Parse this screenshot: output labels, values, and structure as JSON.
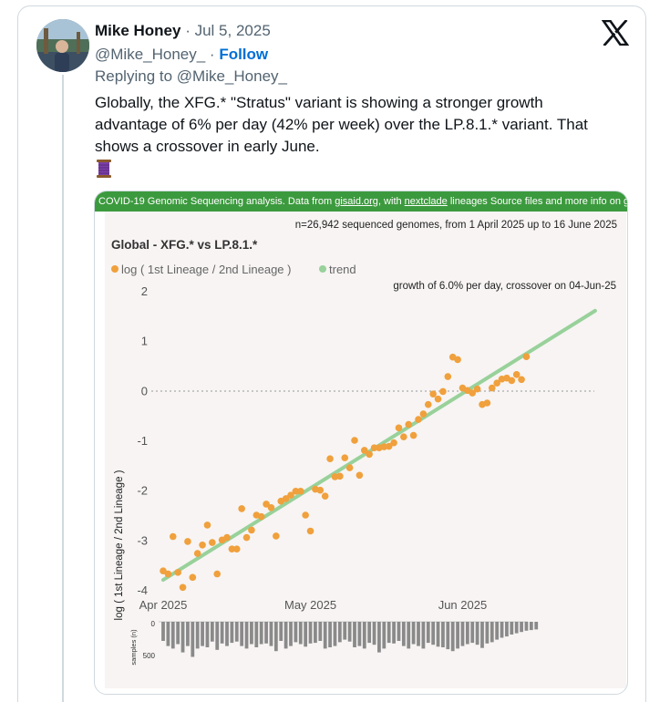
{
  "tweet": {
    "author_name": "Mike Honey",
    "separator": " · ",
    "date": "Jul 5, 2025",
    "handle": "@Mike_Honey_",
    "follow_label": "Follow",
    "reply_prefix": "Replying to ",
    "reply_handle": "@Mike_Honey_",
    "text": "Globally, the XFG.* \"Stratus\" variant is showing a stronger growth advantage of 6% per day (42% per week) over the LP.8.1.* variant. That shows a crossover in early June.",
    "emoji_name": "spool-of-thread-emoji"
  },
  "icons": {
    "x_logo": "x-logo-icon"
  },
  "banner": {
    "prefix": "COVID-19 Genomic Sequencing analysis. Data from ",
    "link1": "gisaid.org",
    "middle": ", with ",
    "link2": "nextclade",
    "suffix": " lineages Source files and more info on ",
    "link3": "github"
  },
  "colors": {
    "banner_green": "#3c9a3e",
    "point_orange": "#f0a03c",
    "trend_green": "#98d19a",
    "bar_gray": "#8a8a8a",
    "follow_blue": "#006fd6"
  },
  "chart_data": {
    "type": "scatter",
    "title": "Global - XFG.* vs LP.8.1.*",
    "subtitle": "n=26,942 sequenced genomes, from 1 April 2025 up to 16 June 2025",
    "annotation": "growth of 6.0% per day, crossover on 04-Jun-25",
    "legend": [
      {
        "name": "log ( 1st Lineage / 2nd Lineage )",
        "color": "#f0a03c"
      },
      {
        "name": "trend",
        "color": "#98d19a"
      }
    ],
    "legend_placement": "top-left",
    "ylabel": "log ( 1st Lineage / 2nd Lineage )",
    "xlabel": "",
    "ylim": [
      -4,
      2
    ],
    "yticks": [
      "2",
      "1",
      "0",
      "-1",
      "-2",
      "-3",
      "-4"
    ],
    "xticks": [
      "Apr 2025",
      "May 2025",
      "Jun 2025"
    ],
    "x_start": "2025-04-01",
    "x_end": "2025-07-01",
    "series": [
      {
        "name": "log ( 1st Lineage / 2nd Lineage )",
        "x": [
          "2025-04-01",
          "2025-04-02",
          "2025-04-03",
          "2025-04-04",
          "2025-04-05",
          "2025-04-06",
          "2025-04-07",
          "2025-04-08",
          "2025-04-09",
          "2025-04-10",
          "2025-04-11",
          "2025-04-12",
          "2025-04-13",
          "2025-04-14",
          "2025-04-15",
          "2025-04-16",
          "2025-04-17",
          "2025-04-18",
          "2025-04-19",
          "2025-04-20",
          "2025-04-21",
          "2025-04-22",
          "2025-04-23",
          "2025-04-24",
          "2025-04-25",
          "2025-04-26",
          "2025-04-27",
          "2025-04-28",
          "2025-04-29",
          "2025-04-30",
          "2025-05-01",
          "2025-05-02",
          "2025-05-03",
          "2025-05-04",
          "2025-05-05",
          "2025-05-06",
          "2025-05-07",
          "2025-05-08",
          "2025-05-09",
          "2025-05-10",
          "2025-05-11",
          "2025-05-12",
          "2025-05-13",
          "2025-05-14",
          "2025-05-15",
          "2025-05-16",
          "2025-05-17",
          "2025-05-18",
          "2025-05-19",
          "2025-05-20",
          "2025-05-21",
          "2025-05-22",
          "2025-05-23",
          "2025-05-24",
          "2025-05-25",
          "2025-05-26",
          "2025-05-27",
          "2025-05-28",
          "2025-05-29",
          "2025-05-30",
          "2025-05-31",
          "2025-06-01",
          "2025-06-02",
          "2025-06-03",
          "2025-06-04",
          "2025-06-05",
          "2025-06-06",
          "2025-06-07",
          "2025-06-08",
          "2025-06-09",
          "2025-06-10",
          "2025-06-11",
          "2025-06-12",
          "2025-06-13",
          "2025-06-14",
          "2025-06-15",
          "2025-06-16"
        ],
        "values": [
          -3.62,
          -3.68,
          -2.93,
          -3.65,
          -3.95,
          -3.03,
          -3.75,
          -3.27,
          -3.1,
          -2.7,
          -3.05,
          -3.68,
          -3.0,
          -2.95,
          -3.18,
          -3.18,
          -2.37,
          -2.95,
          -2.8,
          -2.5,
          -2.53,
          -2.28,
          -2.35,
          -2.92,
          -2.22,
          -2.17,
          -2.1,
          -2.02,
          -2.02,
          -2.5,
          -2.82,
          -1.98,
          -2.0,
          -2.12,
          -1.37,
          -1.73,
          -1.72,
          -1.35,
          -1.55,
          -1.0,
          -1.7,
          -1.2,
          -1.28,
          -1.15,
          -1.15,
          -1.13,
          -1.12,
          -1.05,
          -0.75,
          -0.93,
          -0.68,
          -0.9,
          -0.58,
          -0.47,
          -0.28,
          -0.07,
          -0.17,
          -0.02,
          0.28,
          0.67,
          0.62,
          0.05,
          0.0,
          -0.05,
          0.03,
          -0.28,
          -0.25,
          0.05,
          0.15,
          0.23,
          0.25,
          0.2,
          0.32,
          0.22,
          0.68,
          null,
          null
        ]
      },
      {
        "name": "trend",
        "x": [
          "2025-04-01",
          "2025-06-28"
        ],
        "values": [
          -3.8,
          1.6
        ]
      }
    ],
    "samples": {
      "ylabel": "samples (n)",
      "yticks": [
        "0",
        "500"
      ],
      "values": [
        300,
        380,
        420,
        350,
        480,
        380,
        550,
        420,
        380,
        400,
        310,
        440,
        340,
        380,
        330,
        310,
        380,
        420,
        350,
        400,
        350,
        340,
        380,
        460,
        300,
        420,
        380,
        320,
        350,
        390,
        340,
        330,
        300,
        420,
        400,
        380,
        320,
        280,
        310,
        400,
        380,
        420,
        330,
        360,
        480,
        420,
        330,
        340,
        300,
        380,
        420,
        350,
        380,
        420,
        330,
        360,
        390,
        400,
        430,
        460,
        420,
        380,
        350,
        330,
        360,
        410,
        340,
        320,
        280,
        250,
        230,
        200,
        180,
        160,
        140,
        130,
        120
      ]
    }
  }
}
